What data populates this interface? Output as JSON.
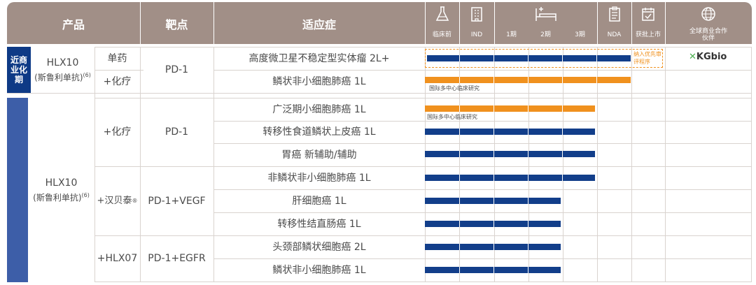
{
  "header": {
    "product": "产品",
    "target": "靶点",
    "indication": "适应症",
    "stages": [
      {
        "label": "临床前",
        "icon": "flask-icon"
      },
      {
        "label": "IND",
        "icon": "building-icon"
      },
      {
        "label": "1期",
        "icon": "hospital-bed-icon"
      },
      {
        "label": "2期",
        "icon": ""
      },
      {
        "label": "3期",
        "icon": ""
      },
      {
        "label": "NDA",
        "icon": "clipboard-icon"
      },
      {
        "label": "获批上市",
        "icon": "calendar-check-icon"
      },
      {
        "label": "全球商业合作伙伴",
        "icon": "globe-icon"
      }
    ]
  },
  "section1": {
    "side_label": "近商业化期",
    "product_name": "HLX10",
    "product_alias": "(斯鲁利单抗)",
    "product_ref": "(6)",
    "target": "PD-1",
    "rows": [
      {
        "combo": "单药",
        "indication": "高度微卫星不稳定型实体瘤 2L+",
        "progress_stage": 6,
        "color": "blue",
        "note": "",
        "status": "纳入优先审评程序"
      },
      {
        "combo": "+化疗",
        "indication": "鳞状非小细胞肺癌 1L",
        "progress_stage": 6,
        "color": "orange",
        "note": "国际多中心临床研究",
        "status": ""
      }
    ],
    "partner": "KGbio"
  },
  "section2": {
    "product_name": "HLX10",
    "product_alias": "(斯鲁利单抗)",
    "product_ref": "(6)",
    "groups": [
      {
        "combo": "+化疗",
        "target": "PD-1",
        "rows": [
          {
            "indication": "广泛期小细胞肺癌 1L",
            "progress_stage": 5,
            "color": "orange",
            "note": "国际多中心临床研究"
          },
          {
            "indication": "转移性食道鳞状上皮癌 1L",
            "progress_stage": 5,
            "color": "blue",
            "note": ""
          },
          {
            "indication": "胃癌 新辅助/辅助",
            "progress_stage": 5,
            "color": "blue",
            "note": ""
          }
        ]
      },
      {
        "combo": "+汉贝泰",
        "combo_mark": "®",
        "target": "PD-1+VEGF",
        "rows": [
          {
            "indication": "非鳞状非小细胞肺癌 1L",
            "progress_stage": 5,
            "color": "blue",
            "note": ""
          },
          {
            "indication": "肝细胞癌 1L",
            "progress_stage": 4,
            "color": "blue",
            "note": ""
          },
          {
            "indication": "转移性结直肠癌 1L",
            "progress_stage": 4,
            "color": "blue",
            "note": ""
          }
        ]
      },
      {
        "combo": "+HLX07",
        "target": "PD-1+EGFR",
        "rows": [
          {
            "indication": "头颈部鳞状细胞癌 2L",
            "progress_stage": 4,
            "color": "blue",
            "note": ""
          },
          {
            "indication": "鳞状非小细胞肺癌 1L",
            "progress_stage": 4,
            "color": "blue",
            "note": ""
          }
        ]
      }
    ]
  },
  "colors": {
    "header": "#a18f87",
    "blue": "#123e8a",
    "orange": "#f0911e",
    "side1": "#0e3a86",
    "side2": "#3d5ea8"
  }
}
